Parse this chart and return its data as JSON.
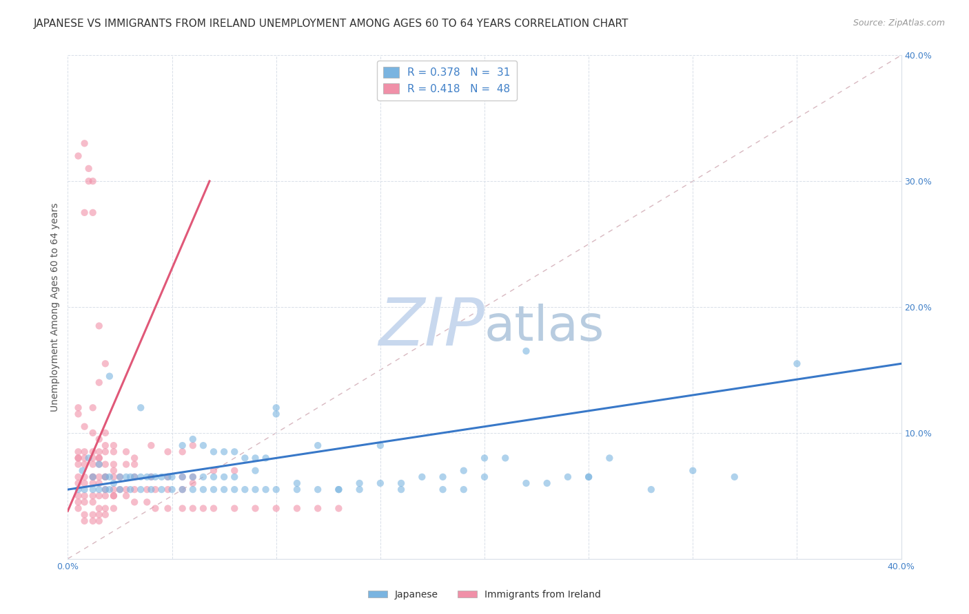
{
  "title": "JAPANESE VS IMMIGRANTS FROM IRELAND UNEMPLOYMENT AMONG AGES 60 TO 64 YEARS CORRELATION CHART",
  "source": "Source: ZipAtlas.com",
  "ylabel": "Unemployment Among Ages 60 to 64 years",
  "xlim": [
    0.0,
    0.4
  ],
  "ylim": [
    0.0,
    0.4
  ],
  "xticks": [
    0.0,
    0.05,
    0.1,
    0.15,
    0.2,
    0.25,
    0.3,
    0.35,
    0.4
  ],
  "yticks": [
    0.0,
    0.1,
    0.2,
    0.3,
    0.4
  ],
  "watermark_zip": "ZIP",
  "watermark_atlas": "atlas",
  "watermark_color_zip": "#c8d8ee",
  "watermark_color_atlas": "#b8cce0",
  "japan_color": "#7ab4e0",
  "ireland_color": "#f090a8",
  "japan_line_color": "#3878c8",
  "ireland_line_color": "#e05878",
  "diag_color": "#d8b8c0",
  "title_fontsize": 11,
  "source_fontsize": 9,
  "axis_label_fontsize": 10,
  "tick_fontsize": 9,
  "legend_fontsize": 11,
  "watermark_fontsize": 60,
  "scatter_size": 55,
  "scatter_alpha": 0.6,
  "background_color": "#ffffff",
  "grid_color": "#d8dfe8",
  "japanese_scatter": [
    [
      0.005,
      0.055
    ],
    [
      0.007,
      0.07
    ],
    [
      0.01,
      0.08
    ],
    [
      0.012,
      0.065
    ],
    [
      0.015,
      0.075
    ],
    [
      0.018,
      0.065
    ],
    [
      0.02,
      0.065
    ],
    [
      0.022,
      0.06
    ],
    [
      0.025,
      0.065
    ],
    [
      0.028,
      0.065
    ],
    [
      0.03,
      0.065
    ],
    [
      0.032,
      0.065
    ],
    [
      0.035,
      0.065
    ],
    [
      0.038,
      0.065
    ],
    [
      0.04,
      0.065
    ],
    [
      0.042,
      0.065
    ],
    [
      0.045,
      0.065
    ],
    [
      0.048,
      0.065
    ],
    [
      0.05,
      0.065
    ],
    [
      0.055,
      0.065
    ],
    [
      0.06,
      0.065
    ],
    [
      0.065,
      0.065
    ],
    [
      0.07,
      0.065
    ],
    [
      0.075,
      0.065
    ],
    [
      0.008,
      0.055
    ],
    [
      0.012,
      0.055
    ],
    [
      0.015,
      0.055
    ],
    [
      0.018,
      0.055
    ],
    [
      0.02,
      0.055
    ],
    [
      0.025,
      0.055
    ],
    [
      0.03,
      0.055
    ],
    [
      0.035,
      0.055
    ],
    [
      0.04,
      0.055
    ],
    [
      0.045,
      0.055
    ],
    [
      0.05,
      0.055
    ],
    [
      0.055,
      0.055
    ],
    [
      0.06,
      0.055
    ],
    [
      0.065,
      0.055
    ],
    [
      0.07,
      0.055
    ],
    [
      0.075,
      0.055
    ],
    [
      0.08,
      0.055
    ],
    [
      0.085,
      0.055
    ],
    [
      0.09,
      0.055
    ],
    [
      0.095,
      0.055
    ],
    [
      0.1,
      0.055
    ],
    [
      0.11,
      0.055
    ],
    [
      0.12,
      0.055
    ],
    [
      0.13,
      0.055
    ],
    [
      0.14,
      0.06
    ],
    [
      0.15,
      0.06
    ],
    [
      0.16,
      0.06
    ],
    [
      0.17,
      0.065
    ],
    [
      0.18,
      0.065
    ],
    [
      0.02,
      0.145
    ],
    [
      0.035,
      0.12
    ],
    [
      0.1,
      0.12
    ],
    [
      0.15,
      0.09
    ],
    [
      0.2,
      0.08
    ],
    [
      0.22,
      0.165
    ],
    [
      0.35,
      0.155
    ],
    [
      0.32,
      0.065
    ],
    [
      0.19,
      0.07
    ],
    [
      0.25,
      0.065
    ],
    [
      0.3,
      0.07
    ],
    [
      0.28,
      0.055
    ],
    [
      0.18,
      0.055
    ],
    [
      0.16,
      0.055
    ],
    [
      0.14,
      0.055
    ],
    [
      0.13,
      0.055
    ],
    [
      0.11,
      0.06
    ],
    [
      0.08,
      0.065
    ],
    [
      0.09,
      0.07
    ],
    [
      0.055,
      0.09
    ],
    [
      0.06,
      0.095
    ],
    [
      0.065,
      0.09
    ],
    [
      0.07,
      0.085
    ],
    [
      0.075,
      0.085
    ],
    [
      0.08,
      0.085
    ],
    [
      0.085,
      0.08
    ],
    [
      0.09,
      0.08
    ],
    [
      0.095,
      0.08
    ],
    [
      0.1,
      0.115
    ],
    [
      0.12,
      0.09
    ],
    [
      0.19,
      0.055
    ],
    [
      0.2,
      0.065
    ],
    [
      0.21,
      0.08
    ],
    [
      0.22,
      0.06
    ],
    [
      0.23,
      0.06
    ],
    [
      0.24,
      0.065
    ],
    [
      0.25,
      0.065
    ],
    [
      0.26,
      0.08
    ]
  ],
  "ireland_scatter": [
    [
      0.005,
      0.32
    ],
    [
      0.008,
      0.33
    ],
    [
      0.01,
      0.31
    ],
    [
      0.01,
      0.3
    ],
    [
      0.012,
      0.3
    ],
    [
      0.008,
      0.275
    ],
    [
      0.012,
      0.275
    ],
    [
      0.015,
      0.185
    ],
    [
      0.018,
      0.155
    ],
    [
      0.015,
      0.14
    ],
    [
      0.012,
      0.12
    ],
    [
      0.005,
      0.12
    ],
    [
      0.008,
      0.105
    ],
    [
      0.012,
      0.1
    ],
    [
      0.015,
      0.095
    ],
    [
      0.018,
      0.09
    ],
    [
      0.005,
      0.085
    ],
    [
      0.008,
      0.085
    ],
    [
      0.012,
      0.085
    ],
    [
      0.015,
      0.085
    ],
    [
      0.018,
      0.085
    ],
    [
      0.005,
      0.08
    ],
    [
      0.008,
      0.08
    ],
    [
      0.012,
      0.08
    ],
    [
      0.015,
      0.08
    ],
    [
      0.005,
      0.075
    ],
    [
      0.008,
      0.075
    ],
    [
      0.012,
      0.075
    ],
    [
      0.015,
      0.075
    ],
    [
      0.018,
      0.075
    ],
    [
      0.022,
      0.075
    ],
    [
      0.005,
      0.065
    ],
    [
      0.008,
      0.065
    ],
    [
      0.012,
      0.065
    ],
    [
      0.015,
      0.065
    ],
    [
      0.018,
      0.065
    ],
    [
      0.022,
      0.065
    ],
    [
      0.025,
      0.065
    ],
    [
      0.005,
      0.06
    ],
    [
      0.008,
      0.06
    ],
    [
      0.012,
      0.06
    ],
    [
      0.015,
      0.06
    ],
    [
      0.018,
      0.055
    ],
    [
      0.022,
      0.055
    ],
    [
      0.025,
      0.055
    ],
    [
      0.028,
      0.055
    ],
    [
      0.005,
      0.05
    ],
    [
      0.008,
      0.05
    ],
    [
      0.012,
      0.05
    ],
    [
      0.015,
      0.05
    ],
    [
      0.018,
      0.05
    ],
    [
      0.022,
      0.05
    ],
    [
      0.005,
      0.045
    ],
    [
      0.008,
      0.045
    ],
    [
      0.012,
      0.045
    ],
    [
      0.015,
      0.04
    ],
    [
      0.018,
      0.04
    ],
    [
      0.022,
      0.04
    ],
    [
      0.005,
      0.04
    ],
    [
      0.008,
      0.035
    ],
    [
      0.012,
      0.035
    ],
    [
      0.015,
      0.035
    ],
    [
      0.018,
      0.035
    ],
    [
      0.008,
      0.03
    ],
    [
      0.012,
      0.03
    ],
    [
      0.015,
      0.03
    ],
    [
      0.005,
      0.08
    ],
    [
      0.022,
      0.09
    ],
    [
      0.028,
      0.075
    ],
    [
      0.032,
      0.08
    ],
    [
      0.022,
      0.07
    ],
    [
      0.032,
      0.075
    ],
    [
      0.04,
      0.09
    ],
    [
      0.048,
      0.085
    ],
    [
      0.055,
      0.085
    ],
    [
      0.06,
      0.09
    ],
    [
      0.04,
      0.065
    ],
    [
      0.048,
      0.065
    ],
    [
      0.055,
      0.065
    ],
    [
      0.06,
      0.065
    ],
    [
      0.07,
      0.07
    ],
    [
      0.08,
      0.07
    ],
    [
      0.032,
      0.065
    ],
    [
      0.005,
      0.115
    ],
    [
      0.012,
      0.065
    ],
    [
      0.015,
      0.08
    ],
    [
      0.018,
      0.1
    ],
    [
      0.022,
      0.085
    ],
    [
      0.028,
      0.085
    ],
    [
      0.032,
      0.055
    ],
    [
      0.038,
      0.055
    ],
    [
      0.042,
      0.055
    ],
    [
      0.048,
      0.055
    ],
    [
      0.055,
      0.055
    ],
    [
      0.06,
      0.06
    ],
    [
      0.018,
      0.065
    ],
    [
      0.022,
      0.05
    ],
    [
      0.028,
      0.05
    ],
    [
      0.032,
      0.045
    ],
    [
      0.038,
      0.045
    ],
    [
      0.042,
      0.04
    ],
    [
      0.048,
      0.04
    ],
    [
      0.055,
      0.04
    ],
    [
      0.06,
      0.04
    ],
    [
      0.065,
      0.04
    ],
    [
      0.07,
      0.04
    ],
    [
      0.08,
      0.04
    ],
    [
      0.09,
      0.04
    ],
    [
      0.1,
      0.04
    ],
    [
      0.11,
      0.04
    ],
    [
      0.12,
      0.04
    ],
    [
      0.13,
      0.04
    ]
  ],
  "japanese_line": {
    "x": [
      0.0,
      0.4
    ],
    "y": [
      0.055,
      0.155
    ]
  },
  "ireland_line": {
    "x": [
      0.0,
      0.068
    ],
    "y": [
      0.038,
      0.3
    ]
  },
  "diag_line": {
    "x": [
      0.0,
      0.4
    ],
    "y": [
      0.0,
      0.4
    ]
  }
}
